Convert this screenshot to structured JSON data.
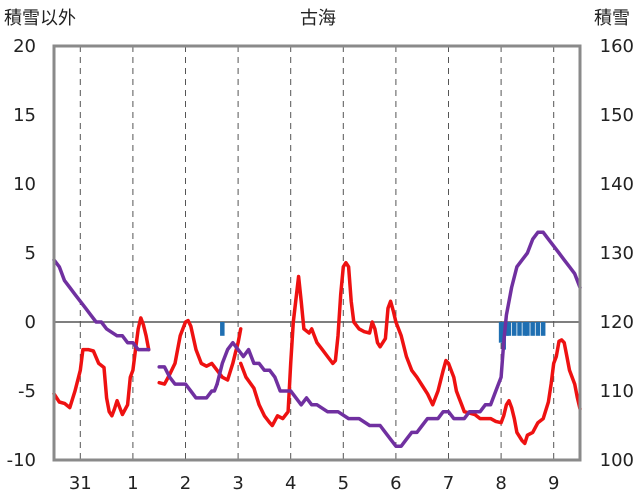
{
  "chart_data": {
    "type": "line",
    "title": "古海",
    "ylabel_left": "積雪以外",
    "ylabel_right": "積雪",
    "y_left_range": [
      -10,
      20
    ],
    "y_left_ticks": [
      "20",
      "15",
      "10",
      "5",
      "0",
      "-5",
      "-10"
    ],
    "y_right_range": [
      100,
      160
    ],
    "y_right_ticks": [
      "160",
      "150",
      "140",
      "130",
      "120",
      "110",
      "100"
    ],
    "x_range": [
      0,
      10
    ],
    "x_day_labels": [
      {
        "x": 0.5,
        "label": "31"
      },
      {
        "x": 1.5,
        "label": "1"
      },
      {
        "x": 2.5,
        "label": "2"
      },
      {
        "x": 3.5,
        "label": "3"
      },
      {
        "x": 4.5,
        "label": "4"
      },
      {
        "x": 5.5,
        "label": "5"
      },
      {
        "x": 6.5,
        "label": "6"
      },
      {
        "x": 7.5,
        "label": "7"
      },
      {
        "x": 8.5,
        "label": "8"
      },
      {
        "x": 9.5,
        "label": "9"
      }
    ],
    "grid": "dashed vertical every quarter-day; solid line at 0",
    "series": [
      {
        "color": "#ee1111",
        "axis": "left",
        "segments": [
          [
            [
              0.0,
              -5.2
            ],
            [
              0.1,
              -5.8
            ],
            [
              0.2,
              -5.9
            ],
            [
              0.3,
              -6.2
            ],
            [
              0.4,
              -5.0
            ],
            [
              0.5,
              -3.5
            ],
            [
              0.55,
              -2.0
            ],
            [
              0.65,
              -2.0
            ],
            [
              0.75,
              -2.1
            ],
            [
              0.85,
              -3.0
            ],
            [
              0.95,
              -3.3
            ],
            [
              1.0,
              -5.5
            ],
            [
              1.05,
              -6.5
            ],
            [
              1.1,
              -6.8
            ],
            [
              1.15,
              -6.3
            ],
            [
              1.2,
              -5.7
            ],
            [
              1.3,
              -6.7
            ],
            [
              1.4,
              -6.0
            ],
            [
              1.45,
              -4.0
            ],
            [
              1.5,
              -3.5
            ],
            [
              1.55,
              -2.0
            ],
            [
              1.6,
              -0.5
            ],
            [
              1.65,
              0.3
            ],
            [
              1.7,
              -0.2
            ],
            [
              1.75,
              -1.0
            ],
            [
              1.8,
              -2.0
            ]
          ],
          [
            [
              2.0,
              -4.4
            ],
            [
              2.1,
              -4.5
            ],
            [
              2.2,
              -3.8
            ],
            [
              2.3,
              -3.0
            ],
            [
              2.4,
              -1.0
            ],
            [
              2.5,
              0.0
            ],
            [
              2.55,
              0.1
            ],
            [
              2.6,
              -0.3
            ],
            [
              2.7,
              -2.0
            ],
            [
              2.8,
              -3.0
            ],
            [
              2.9,
              -3.2
            ],
            [
              3.0,
              -3.0
            ],
            [
              3.1,
              -3.5
            ],
            [
              3.2,
              -4.0
            ],
            [
              3.3,
              -4.2
            ],
            [
              3.4,
              -3.0
            ],
            [
              3.45,
              -2.2
            ],
            [
              3.5,
              -1.5
            ],
            [
              3.55,
              -0.5
            ]
          ],
          [
            [
              3.55,
              -3.0
            ],
            [
              3.65,
              -4.0
            ],
            [
              3.8,
              -4.8
            ],
            [
              3.9,
              -6.0
            ],
            [
              4.0,
              -6.8
            ],
            [
              4.1,
              -7.3
            ],
            [
              4.15,
              -7.5
            ],
            [
              4.25,
              -6.8
            ],
            [
              4.35,
              -7.0
            ],
            [
              4.45,
              -6.5
            ],
            [
              4.5,
              -3.0
            ],
            [
              4.55,
              0.0
            ],
            [
              4.65,
              3.3
            ],
            [
              4.7,
              1.5
            ],
            [
              4.75,
              -0.5
            ],
            [
              4.85,
              -0.8
            ],
            [
              4.9,
              -0.5
            ],
            [
              5.0,
              -1.5
            ],
            [
              5.1,
              -2.0
            ],
            [
              5.2,
              -2.5
            ],
            [
              5.3,
              -3.0
            ],
            [
              5.35,
              -2.8
            ],
            [
              5.4,
              -1.0
            ],
            [
              5.45,
              2.0
            ],
            [
              5.5,
              4.0
            ],
            [
              5.55,
              4.3
            ],
            [
              5.6,
              4.0
            ],
            [
              5.65,
              1.5
            ],
            [
              5.7,
              0.0
            ],
            [
              5.8,
              -0.5
            ],
            [
              5.9,
              -0.7
            ],
            [
              6.0,
              -0.8
            ],
            [
              6.05,
              0.0
            ],
            [
              6.1,
              -0.5
            ],
            [
              6.15,
              -1.5
            ],
            [
              6.2,
              -1.8
            ],
            [
              6.3,
              -1.2
            ],
            [
              6.35,
              1.0
            ],
            [
              6.4,
              1.5
            ],
            [
              6.45,
              0.8
            ],
            [
              6.5,
              0.0
            ],
            [
              6.6,
              -1.0
            ],
            [
              6.7,
              -2.5
            ],
            [
              6.8,
              -3.5
            ],
            [
              6.9,
              -4.0
            ],
            [
              7.0,
              -4.6
            ],
            [
              7.1,
              -5.2
            ],
            [
              7.2,
              -6.0
            ],
            [
              7.3,
              -5.0
            ],
            [
              7.4,
              -3.5
            ],
            [
              7.45,
              -2.8
            ],
            [
              7.5,
              -3.0
            ],
            [
              7.6,
              -4.0
            ],
            [
              7.65,
              -5.0
            ],
            [
              7.7,
              -5.5
            ],
            [
              7.75,
              -6.0
            ],
            [
              7.8,
              -6.5
            ],
            [
              7.9,
              -6.6
            ],
            [
              8.0,
              -6.7
            ],
            [
              8.1,
              -7.0
            ],
            [
              8.2,
              -7.0
            ],
            [
              8.3,
              -7.0
            ],
            [
              8.4,
              -7.2
            ],
            [
              8.5,
              -7.3
            ],
            [
              8.55,
              -6.8
            ],
            [
              8.6,
              -6.0
            ],
            [
              8.65,
              -5.7
            ],
            [
              8.7,
              -6.2
            ],
            [
              8.75,
              -7.0
            ],
            [
              8.8,
              -8.0
            ],
            [
              8.9,
              -8.6
            ],
            [
              8.95,
              -8.8
            ],
            [
              9.0,
              -8.2
            ],
            [
              9.1,
              -8.0
            ],
            [
              9.2,
              -7.3
            ],
            [
              9.3,
              -7.0
            ],
            [
              9.4,
              -5.8
            ],
            [
              9.45,
              -4.5
            ],
            [
              9.5,
              -3.0
            ],
            [
              9.55,
              -2.5
            ],
            [
              9.6,
              -1.4
            ],
            [
              9.65,
              -1.3
            ],
            [
              9.7,
              -1.5
            ],
            [
              9.75,
              -2.5
            ],
            [
              9.8,
              -3.5
            ],
            [
              9.9,
              -4.5
            ],
            [
              9.95,
              -5.5
            ],
            [
              10.0,
              -6.3
            ]
          ]
        ]
      },
      {
        "color": "#7030a0",
        "axis": "right",
        "segments": [
          [
            [
              0.0,
              129
            ],
            [
              0.1,
              128
            ],
            [
              0.2,
              126
            ],
            [
              0.3,
              125
            ],
            [
              0.4,
              124
            ],
            [
              0.5,
              123
            ],
            [
              0.6,
              122
            ],
            [
              0.7,
              121
            ],
            [
              0.8,
              120
            ],
            [
              0.9,
              120
            ],
            [
              1.0,
              119
            ],
            [
              1.1,
              118.5
            ],
            [
              1.2,
              118
            ],
            [
              1.3,
              118
            ],
            [
              1.4,
              117
            ],
            [
              1.5,
              117
            ],
            [
              1.6,
              116
            ],
            [
              1.7,
              116
            ],
            [
              1.8,
              116
            ]
          ],
          [
            [
              2.0,
              113.5
            ],
            [
              2.1,
              113.5
            ],
            [
              2.2,
              112
            ],
            [
              2.3,
              111
            ],
            [
              2.4,
              111
            ],
            [
              2.5,
              111
            ],
            [
              2.6,
              110
            ],
            [
              2.7,
              109
            ],
            [
              2.8,
              109
            ],
            [
              2.9,
              109
            ],
            [
              3.0,
              110
            ],
            [
              3.05,
              110
            ],
            [
              3.1,
              111
            ]
          ],
          [
            [
              3.1,
              111
            ],
            [
              3.2,
              114
            ],
            [
              3.3,
              116
            ],
            [
              3.4,
              117
            ],
            [
              3.5,
              116
            ],
            [
              3.6,
              115
            ],
            [
              3.7,
              116
            ],
            [
              3.8,
              114
            ],
            [
              3.9,
              114
            ],
            [
              4.0,
              113
            ],
            [
              4.1,
              113
            ],
            [
              4.2,
              112
            ],
            [
              4.3,
              110
            ],
            [
              4.4,
              110
            ],
            [
              4.5,
              110
            ],
            [
              4.6,
              109
            ],
            [
              4.7,
              108
            ],
            [
              4.8,
              109
            ],
            [
              4.9,
              108
            ],
            [
              5.0,
              108
            ],
            [
              5.2,
              107
            ],
            [
              5.4,
              107
            ],
            [
              5.6,
              106
            ],
            [
              5.8,
              106
            ],
            [
              6.0,
              105
            ],
            [
              6.2,
              105
            ],
            [
              6.4,
              103
            ],
            [
              6.5,
              102
            ],
            [
              6.6,
              102
            ],
            [
              6.7,
              103
            ],
            [
              6.8,
              104
            ],
            [
              6.9,
              104
            ],
            [
              7.0,
              105
            ],
            [
              7.1,
              106
            ],
            [
              7.2,
              106
            ],
            [
              7.3,
              106
            ],
            [
              7.4,
              107
            ],
            [
              7.5,
              107
            ],
            [
              7.6,
              106
            ],
            [
              7.7,
              106
            ],
            [
              7.8,
              106
            ],
            [
              7.9,
              107
            ],
            [
              8.0,
              107
            ],
            [
              8.1,
              107
            ],
            [
              8.2,
              108
            ],
            [
              8.3,
              108
            ],
            [
              8.4,
              110
            ],
            [
              8.5,
              112
            ],
            [
              8.55,
              117
            ],
            [
              8.6,
              121
            ],
            [
              8.7,
              125
            ],
            [
              8.8,
              128
            ],
            [
              8.9,
              129
            ],
            [
              9.0,
              130
            ],
            [
              9.1,
              132
            ],
            [
              9.2,
              133
            ],
            [
              9.3,
              133
            ],
            [
              9.4,
              132
            ],
            [
              9.5,
              131
            ],
            [
              9.6,
              130
            ],
            [
              9.7,
              129
            ],
            [
              9.8,
              128
            ],
            [
              9.9,
              127
            ],
            [
              10.0,
              125
            ]
          ]
        ]
      }
    ],
    "bars": {
      "color": "#1f6fb2",
      "axis": "left",
      "items": [
        {
          "x": 3.2,
          "value": -1.0
        },
        {
          "x": 8.5,
          "value": -1.5
        },
        {
          "x": 8.55,
          "value": -2.0
        },
        {
          "x": 8.6,
          "value": -1.0
        },
        {
          "x": 8.65,
          "value": -1.0
        },
        {
          "x": 8.75,
          "value": -1.0
        },
        {
          "x": 8.85,
          "value": -1.0
        },
        {
          "x": 8.95,
          "value": -1.0
        },
        {
          "x": 9.0,
          "value": -1.0
        },
        {
          "x": 9.1,
          "value": -1.0
        },
        {
          "x": 9.2,
          "value": -1.0
        },
        {
          "x": 9.3,
          "value": -1.0
        }
      ]
    }
  }
}
